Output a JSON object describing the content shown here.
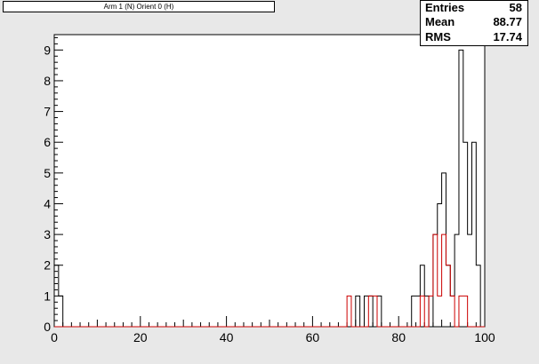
{
  "title": "Arm 1 (N) Orient 0 (H)",
  "stats": {
    "entries_label": "Entries",
    "entries_value": "58",
    "mean_label": "Mean",
    "mean_value": "88.77",
    "rms_label": "RMS",
    "rms_value": "17.74"
  },
  "colors": {
    "black_series": "#000000",
    "red_series": "#cc0000",
    "frame_bg": "#ffffff",
    "canvas_bg": "#e8e8e8"
  },
  "chart_data": {
    "type": "bar",
    "title": "Arm 1 (N) Orient 0 (H)",
    "xlim": [
      0,
      100
    ],
    "ylim": [
      0,
      9.5
    ],
    "x_ticks": [
      0,
      20,
      40,
      60,
      80,
      100
    ],
    "y_ticks": [
      0,
      1,
      2,
      3,
      4,
      5,
      6,
      7,
      8,
      9
    ],
    "bin_width": 1,
    "series": [
      {
        "color": "#000000",
        "bins": [
          {
            "x": 0,
            "y": 2
          },
          {
            "x": 1,
            "y": 1
          },
          {
            "x": 70,
            "y": 1
          },
          {
            "x": 72,
            "y": 1
          },
          {
            "x": 73,
            "y": 1
          },
          {
            "x": 75,
            "y": 1
          },
          {
            "x": 83,
            "y": 1
          },
          {
            "x": 84,
            "y": 1
          },
          {
            "x": 85,
            "y": 2
          },
          {
            "x": 86,
            "y": 1
          },
          {
            "x": 88,
            "y": 3
          },
          {
            "x": 89,
            "y": 4
          },
          {
            "x": 90,
            "y": 5
          },
          {
            "x": 91,
            "y": 2
          },
          {
            "x": 92,
            "y": 1
          },
          {
            "x": 93,
            "y": 3
          },
          {
            "x": 94,
            "y": 9
          },
          {
            "x": 95,
            "y": 6
          },
          {
            "x": 96,
            "y": 3
          },
          {
            "x": 97,
            "y": 6
          },
          {
            "x": 98,
            "y": 2
          }
        ]
      },
      {
        "color": "#cc0000",
        "bins": [
          {
            "x": 68,
            "y": 1
          },
          {
            "x": 73,
            "y": 1
          },
          {
            "x": 74,
            "y": 1
          },
          {
            "x": 85,
            "y": 1
          },
          {
            "x": 87,
            "y": 1
          },
          {
            "x": 88,
            "y": 3
          },
          {
            "x": 89,
            "y": 1
          },
          {
            "x": 90,
            "y": 3
          },
          {
            "x": 91,
            "y": 2
          },
          {
            "x": 92,
            "y": 1
          },
          {
            "x": 94,
            "y": 1
          },
          {
            "x": 95,
            "y": 1
          }
        ]
      }
    ]
  }
}
